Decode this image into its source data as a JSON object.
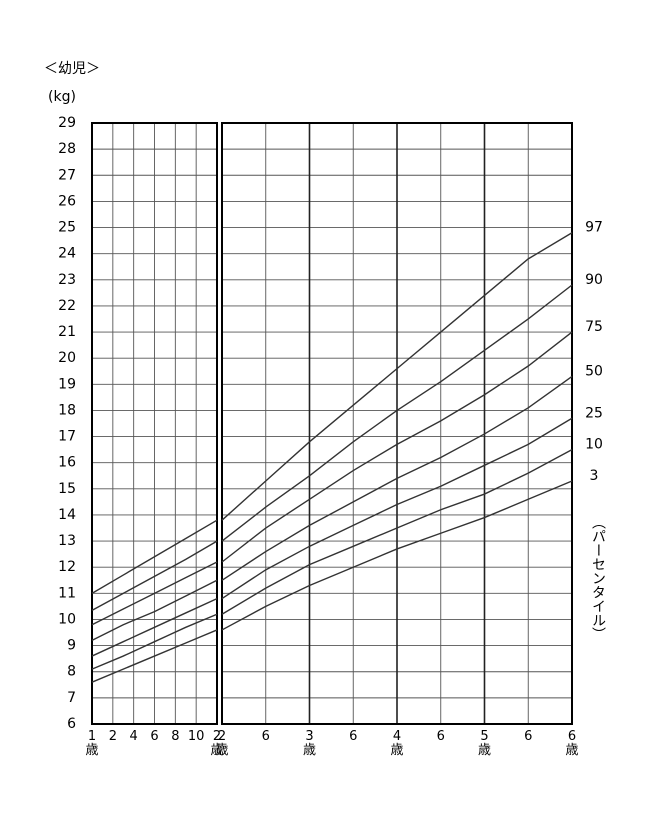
{
  "chart_data": {
    "type": "line",
    "title": "＜幼児＞",
    "y_label": "(kg)",
    "legend_title": "（パーセンタイル）",
    "ylim": [
      6,
      29
    ],
    "yticks": [
      6,
      7,
      8,
      9,
      10,
      11,
      12,
      13,
      14,
      15,
      16,
      17,
      18,
      19,
      20,
      21,
      22,
      23,
      24,
      25,
      26,
      27,
      28,
      29
    ],
    "grid": true,
    "x": [
      12,
      15,
      18,
      21,
      24,
      30,
      36,
      42,
      48,
      54,
      60,
      66,
      72
    ],
    "panels": [
      {
        "xlim": [
          12,
          24
        ],
        "xticks": [
          {
            "value": 12,
            "label": "1\n歳"
          },
          {
            "value": 14,
            "label": "2"
          },
          {
            "value": 16,
            "label": "4"
          },
          {
            "value": 18,
            "label": "6"
          },
          {
            "value": 20,
            "label": "8"
          },
          {
            "value": 22,
            "label": "10"
          },
          {
            "value": 24,
            "label": "2\n歳"
          }
        ]
      },
      {
        "xlim": [
          24,
          72
        ],
        "xticks": [
          {
            "value": 24,
            "label": "2\n歳"
          },
          {
            "value": 30,
            "label": "6"
          },
          {
            "value": 36,
            "label": "3\n歳"
          },
          {
            "value": 42,
            "label": "6"
          },
          {
            "value": 48,
            "label": "4\n歳"
          },
          {
            "value": 54,
            "label": "6"
          },
          {
            "value": 60,
            "label": "5\n歳"
          },
          {
            "value": 66,
            "label": "6"
          },
          {
            "value": 72,
            "label": "6\n歳"
          }
        ]
      }
    ],
    "series": [
      {
        "name": "97",
        "color": "#333333",
        "values": [
          11.0,
          11.7,
          12.4,
          13.1,
          13.8,
          15.3,
          16.8,
          18.2,
          19.6,
          21.0,
          22.4,
          23.8,
          24.8
        ]
      },
      {
        "name": "90",
        "color": "#333333",
        "values": [
          10.35,
          11.0,
          11.65,
          12.3,
          13.0,
          14.3,
          15.5,
          16.8,
          18.0,
          19.1,
          20.3,
          21.5,
          22.8
        ]
      },
      {
        "name": "75",
        "color": "#333333",
        "values": [
          9.8,
          10.4,
          11.0,
          11.6,
          12.2,
          13.5,
          14.6,
          15.7,
          16.7,
          17.6,
          18.6,
          19.7,
          21.0
        ]
      },
      {
        "name": "50",
        "color": "#333333",
        "values": [
          9.2,
          9.8,
          10.3,
          10.9,
          11.5,
          12.6,
          13.6,
          14.5,
          15.4,
          16.2,
          17.1,
          18.1,
          19.3
        ]
      },
      {
        "name": "25",
        "color": "#333333",
        "values": [
          8.6,
          9.15,
          9.7,
          10.25,
          10.8,
          11.9,
          12.8,
          13.6,
          14.4,
          15.1,
          15.9,
          16.7,
          17.7
        ]
      },
      {
        "name": "10",
        "color": "#333333",
        "values": [
          8.1,
          8.6,
          9.15,
          9.7,
          10.2,
          11.2,
          12.1,
          12.8,
          13.5,
          14.2,
          14.8,
          15.6,
          16.5
        ]
      },
      {
        "name": "3",
        "color": "#333333",
        "values": [
          7.6,
          8.1,
          8.6,
          9.1,
          9.6,
          10.5,
          11.3,
          12.0,
          12.7,
          13.3,
          13.9,
          14.6,
          15.3
        ]
      }
    ]
  }
}
